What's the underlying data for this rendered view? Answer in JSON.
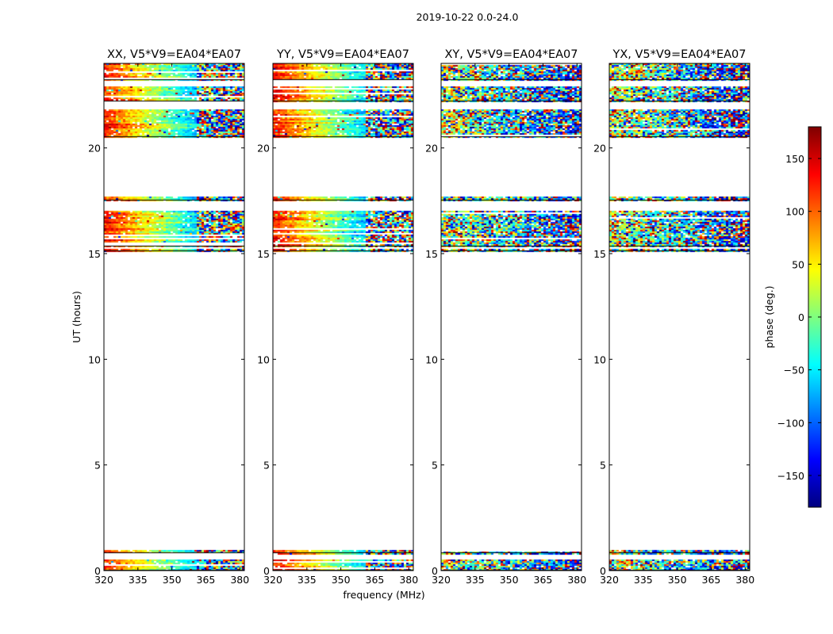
{
  "figure_title": "2019-10-22 0.0-24.0",
  "chart_data": {
    "type": "heatmap",
    "title": "2019-10-22 0.0-24.0",
    "xlabel": "frequency (MHz)",
    "ylabel": "UT (hours)",
    "xlim": [
      320,
      382
    ],
    "ylim": [
      0,
      24
    ],
    "x_ticks": [
      320,
      335,
      350,
      365,
      380
    ],
    "y_ticks": [
      0,
      5,
      10,
      15,
      20
    ],
    "panels": [
      {
        "title": "XX, V5*V9=EA04*EA07",
        "pol": "XX",
        "pattern": "parallel"
      },
      {
        "title": "YY, V5*V9=EA04*EA07",
        "pol": "YY",
        "pattern": "parallel"
      },
      {
        "title": "XY, V5*V9=EA04*EA07",
        "pol": "XY",
        "pattern": "cross"
      },
      {
        "title": "YX, V5*V9=EA04*EA07",
        "pol": "YX",
        "pattern": "cross"
      }
    ],
    "data_time_ranges_hours": [
      [
        0.0,
        0.5
      ],
      [
        0.8,
        0.95
      ],
      [
        15.1,
        15.2
      ],
      [
        15.3,
        17.0
      ],
      [
        17.5,
        17.7
      ],
      [
        20.5,
        21.8
      ],
      [
        22.2,
        22.9
      ],
      [
        23.2,
        24.0
      ]
    ],
    "colorbar": {
      "label": "phase (deg.)",
      "min": -180,
      "max": 180,
      "ticks": [
        150,
        100,
        50,
        0,
        -50,
        -100,
        -150
      ],
      "tick_labels": [
        "150",
        "100",
        "50",
        "0",
        "−50",
        "−100",
        "−150"
      ],
      "colormap": [
        "#00007f",
        "#0000ff",
        "#007fff",
        "#00ffff",
        "#7fff7f",
        "#ffff00",
        "#ff7f00",
        "#ff0000",
        "#7f0000"
      ]
    }
  }
}
